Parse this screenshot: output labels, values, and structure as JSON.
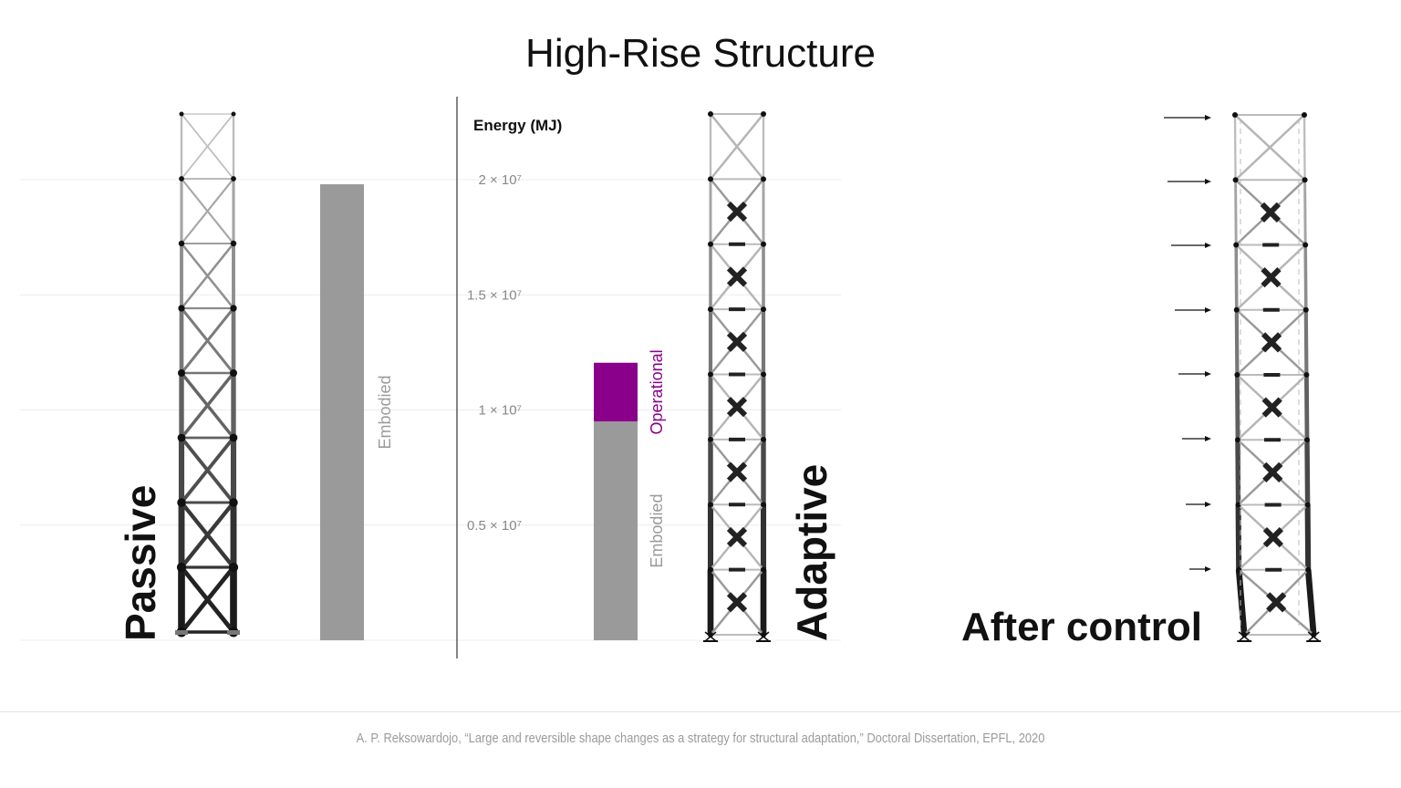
{
  "title": "High-Rise Structure",
  "citation": "A. P. Reksowardojo, “Large and reversible shape changes as a strategy for structural adaptation,” Doctoral Dissertation, EPFL, 2020",
  "labels": {
    "passive": "Passive",
    "adaptive": "Adaptive",
    "after_control": "After control"
  },
  "colors": {
    "embodied": "#9a9a9a",
    "operational": "#8b008b",
    "structure_dark": "#111111",
    "structure_light": "#c8c8c8"
  },
  "chart_data": {
    "type": "bar",
    "ylabel": "Energy (MJ)",
    "ylim": [
      0,
      20500000
    ],
    "yticks": [
      {
        "value": 5000000,
        "label": "0.5 × 10⁷"
      },
      {
        "value": 10000000,
        "label": "1 × 10⁷"
      },
      {
        "value": 15000000,
        "label": "1.5 × 10⁷"
      },
      {
        "value": 20000000,
        "label": "2 × 10⁷"
      }
    ],
    "categories": [
      "Passive",
      "Adaptive"
    ],
    "series": [
      {
        "name": "Embodied",
        "values": [
          19800000,
          9500000
        ],
        "color": "#9a9a9a"
      },
      {
        "name": "Operational",
        "values": [
          0,
          2550000
        ],
        "color": "#8b008b"
      }
    ],
    "grid": true
  }
}
